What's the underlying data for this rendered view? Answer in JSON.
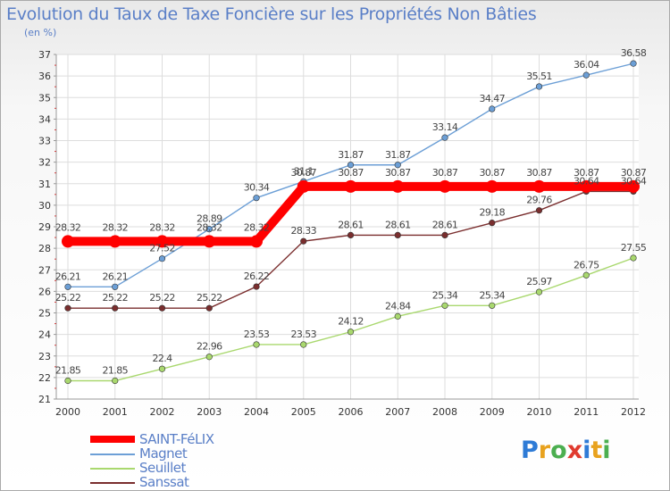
{
  "title": "Evolution du Taux de Taxe Foncière sur les Propriétés Non Bâties",
  "unit": "(en %)",
  "chart_data": {
    "type": "line",
    "title": "Evolution du Taux de Taxe Foncière sur les Propriétés Non Bâties",
    "ylabel": "(en %)",
    "xlabel": "",
    "x": [
      "2000",
      "2001",
      "2002",
      "2003",
      "2004",
      "2005",
      "2006",
      "2007",
      "2008",
      "2009",
      "2010",
      "2011",
      "2012"
    ],
    "ylim": [
      21,
      37
    ],
    "yticks": [
      "21",
      "22",
      "23",
      "24",
      "25",
      "26",
      "27",
      "28",
      "29",
      "30",
      "31",
      "32",
      "33",
      "34",
      "35",
      "36",
      "37"
    ],
    "grid": true,
    "legend_position": "bottom-left",
    "series": [
      {
        "name": "SAINT-FéLIX",
        "color": "#ff0000",
        "values": [
          28.32,
          28.32,
          28.32,
          28.32,
          28.32,
          30.87,
          30.87,
          30.87,
          30.87,
          30.87,
          30.87,
          30.87,
          30.87
        ],
        "labels": [
          "28.32",
          "28.32",
          "28.32",
          "28.32",
          "28.32",
          "30.87",
          "30.87",
          "30.87",
          "30.87",
          "30.87",
          "30.87",
          "30.87",
          "30.87"
        ]
      },
      {
        "name": "Magnet",
        "color": "#6c9fd6",
        "values": [
          26.21,
          26.21,
          27.52,
          28.89,
          30.34,
          31.1,
          31.87,
          31.87,
          33.14,
          34.47,
          35.51,
          36.04,
          36.58
        ],
        "labels": [
          "26.21",
          "26.21",
          "27.52",
          "28.89",
          "30.34",
          "31.1",
          "31.87",
          "31.87",
          "33.14",
          "34.47",
          "35.51",
          "36.04",
          "36.58"
        ]
      },
      {
        "name": "Seuillet",
        "color": "#a9d86e",
        "values": [
          21.85,
          21.85,
          22.4,
          22.96,
          23.53,
          23.53,
          24.12,
          24.84,
          25.34,
          25.34,
          25.97,
          26.75,
          27.55
        ],
        "labels": [
          "21.85",
          "21.85",
          "22.4",
          "22.96",
          "23.53",
          "23.53",
          "24.12",
          "24.84",
          "25.34",
          "25.34",
          "25.97",
          "26.75",
          "27.55"
        ]
      },
      {
        "name": "Sanssat",
        "color": "#7a2e2e",
        "values": [
          25.22,
          25.22,
          25.22,
          25.22,
          26.22,
          28.33,
          28.61,
          28.61,
          28.61,
          29.18,
          29.76,
          30.64,
          30.64
        ],
        "labels": [
          "25.22",
          "25.22",
          "25.22",
          "25.22",
          "26.22",
          "28.33",
          "28.61",
          "28.61",
          "28.61",
          "29.18",
          "29.76",
          "30.64",
          "30.64"
        ]
      }
    ]
  },
  "legend": [
    {
      "label": "SAINT-FéLIX",
      "color": "#ff0000",
      "swatch": "thick"
    },
    {
      "label": "Magnet",
      "color": "#6c9fd6",
      "swatch": "thin"
    },
    {
      "label": "Seuillet",
      "color": "#a9d86e",
      "swatch": "thin"
    },
    {
      "label": "Sanssat",
      "color": "#7a2e2e",
      "swatch": "thin"
    }
  ],
  "logo": {
    "letters": [
      "P",
      "r",
      "o",
      "x",
      "i",
      "t",
      "i"
    ],
    "colors": [
      "#2e7bd6",
      "#e8a21e",
      "#4caf50",
      "#e03a2e",
      "#2e7bd6",
      "#e8a21e",
      "#4caf50"
    ]
  }
}
